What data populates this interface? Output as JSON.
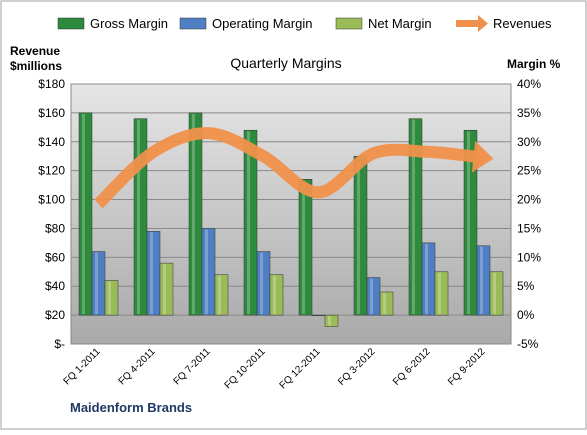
{
  "chart_data": {
    "type": "bar",
    "title": "Quarterly Margins",
    "company": "Maidenform Brands",
    "left_axis": {
      "label_line1": "Revenue",
      "label_line2": "$millions",
      "min": 0,
      "max": 180,
      "step": 20,
      "tick_labels": [
        "$-",
        "$20",
        "$40",
        "$60",
        "$80",
        "$100",
        "$120",
        "$140",
        "$160",
        "$180"
      ]
    },
    "right_axis": {
      "label": "Margin %",
      "min": -5,
      "max": 40,
      "step": 5,
      "tick_labels": [
        "-5%",
        "0%",
        "5%",
        "10%",
        "15%",
        "20%",
        "25%",
        "30%",
        "35%",
        "40%"
      ]
    },
    "categories": [
      "FQ 1-2011",
      "FQ 4-2011",
      "FQ 7-2011",
      "FQ 10-2011",
      "FQ 12-2011",
      "FQ 3-2012",
      "FQ 6-2012",
      "FQ 9-2012"
    ],
    "series": [
      {
        "name": "Gross Margin",
        "axis": "right",
        "kind": "bar",
        "color": "#2e8b3d",
        "values": [
          35,
          34,
          35,
          32,
          23.5,
          27.5,
          34,
          32
        ]
      },
      {
        "name": "Operating Margin",
        "axis": "right",
        "kind": "bar",
        "color": "#4f7fc2",
        "values": [
          11,
          14.5,
          15,
          11,
          0,
          6.5,
          12.5,
          12
        ]
      },
      {
        "name": "Net Margin",
        "axis": "right",
        "kind": "bar",
        "color": "#9bbb59",
        "values": [
          6,
          9,
          7,
          7,
          -2,
          4,
          7.5,
          7.5
        ]
      },
      {
        "name": "Revenues",
        "axis": "left",
        "kind": "line",
        "color": "#f0904a",
        "values": [
          97,
          133,
          146,
          130,
          105,
          132,
          133,
          129
        ]
      }
    ],
    "grid": true,
    "legend_position": "top"
  }
}
